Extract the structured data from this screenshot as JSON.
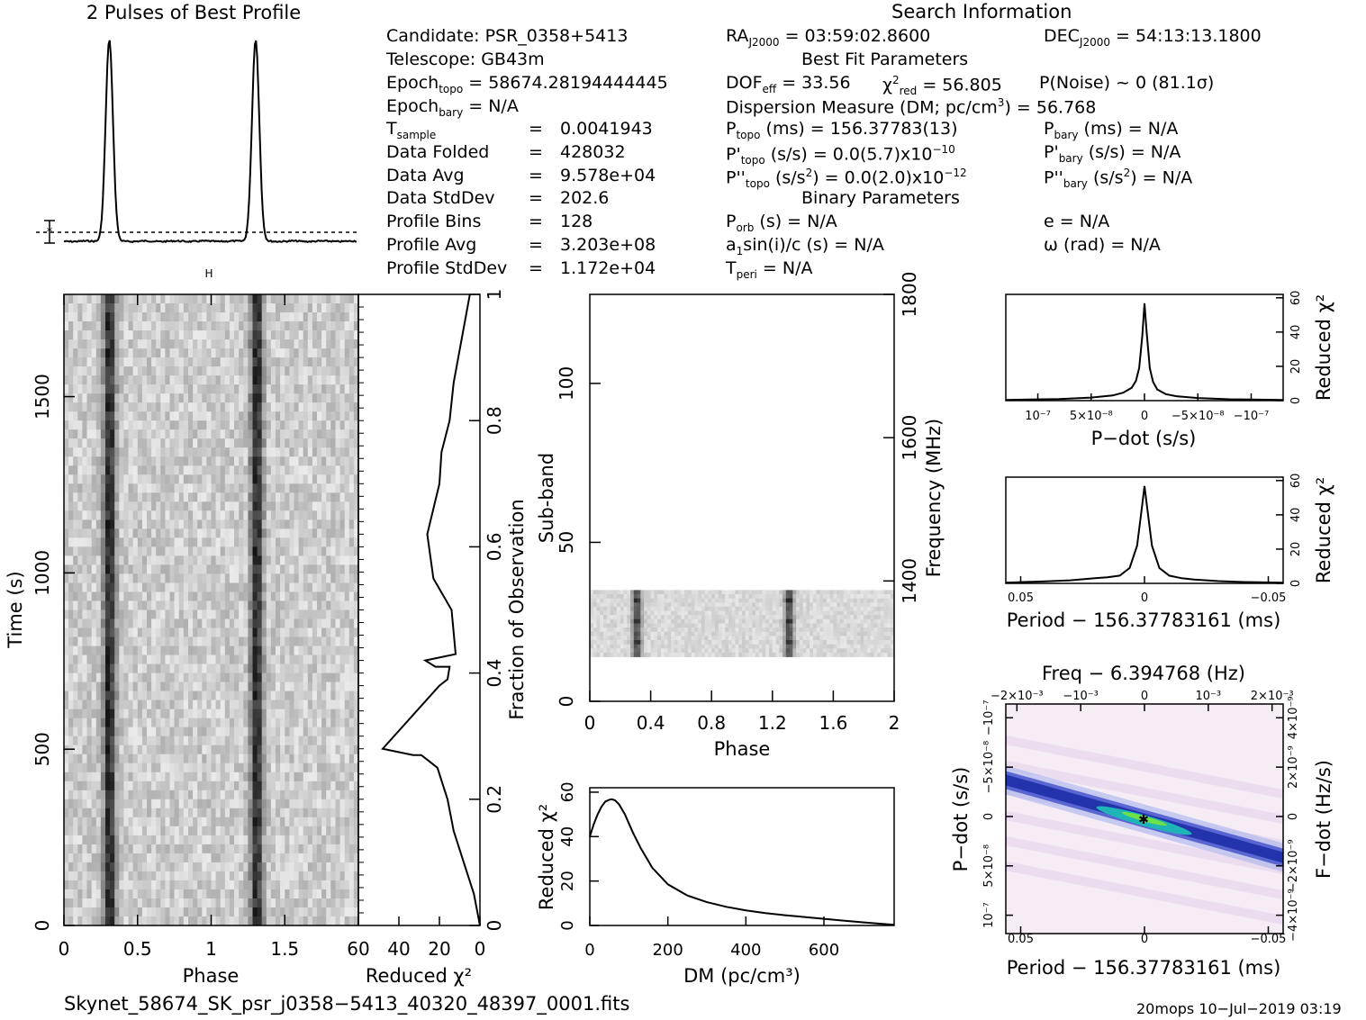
{
  "header": {
    "profile_title": "2 Pulses of Best Profile",
    "search_title": "Search Information"
  },
  "candidate": {
    "candidate": "Candidate:  PSR_0358+5413",
    "telescope": "Telescope:  GB43m",
    "epoch_topo_label": "Epoch",
    "epoch_topo_sub": "topo",
    "epoch_topo_value": " = 58674.28194444445",
    "epoch_bary_label": "Epoch",
    "epoch_bary_sub": "bary",
    "epoch_bary_value": " = N/A",
    "tsample_label": "T",
    "tsample_sub": "sample",
    "tsample_value": "0.0041943",
    "data_folded_label": "Data Folded",
    "data_folded_value": "428032",
    "data_avg_label": "Data Avg",
    "data_avg_value": "9.578e+04",
    "data_stddev_label": "Data StdDev",
    "data_stddev_value": "202.6",
    "profile_bins_label": "Profile Bins",
    "profile_bins_value": "128",
    "profile_avg_label": "Profile Avg",
    "profile_avg_value": "3.203e+08",
    "profile_stddev_label": "Profile StdDev",
    "profile_stddev_value": "1.172e+04",
    "equals": "="
  },
  "search": {
    "ra": "= 03:59:02.8600",
    "dec": "= 54:13:13.1800",
    "ra_label": "RA",
    "dec_label": "DEC",
    "j2000": "J2000",
    "best_fit": "Best Fit Parameters",
    "dof_label": "DOF",
    "dof_sub": "eff",
    "dof_value": " = 33.56",
    "chi_red_sub": "red",
    "chi_value": " = 56.805",
    "pnoise": "P(Noise) ~ 0   (81.1σ)",
    "dm_line": "Dispersion Measure (DM; pc/cm",
    "dm_value": ") = 56.768",
    "ptopo": "(ms) =  156.37783(13)",
    "pdtopo": "(s/s) = 0.0(5.7)x10",
    "pdtopo_exp": "−10",
    "pddtopo": "(s/s",
    "pddtopo_val": ") = 0.0(2.0)x10",
    "pddtopo_exp": "−12",
    "pbary": "(ms) = N/A",
    "pdbary": "(s/s) = N/A",
    "pddbary": "(s/s",
    "pddbary_val": ") = N/A",
    "topo": "topo",
    "bary": "bary",
    "binary": "Binary Parameters",
    "porb": "(s) = N/A",
    "asini": "sin(i)/c (s) = N/A",
    "tperi": " = N/A",
    "e": "e = N/A",
    "omega": "ω (rad) = N/A"
  },
  "footer": {
    "filename": "Skynet_58674_SK_psr_j0358−5413_40320_48397_0001.fits",
    "stamp": "20mops 10−Jul−2019 03:19"
  },
  "chart_data": [
    {
      "type": "line",
      "id": "pulse-profile",
      "title": "2 Pulses of Best Profile",
      "xlim": [
        0,
        2
      ],
      "peaks_phase": [
        0.31,
        1.31
      ]
    },
    {
      "type": "heatmap",
      "id": "time-phase",
      "xlabel": "Phase",
      "ylabel": "Time (s)",
      "xlim": [
        0,
        2
      ],
      "ylim": [
        0,
        1790
      ],
      "xticks": [
        "0",
        "0.5",
        "1",
        "1.5"
      ],
      "yticks": [
        "0",
        "500",
        "1000",
        "1500"
      ],
      "pulse_phase": [
        0.31,
        1.31
      ]
    },
    {
      "type": "line",
      "id": "chi-vs-time",
      "xlabel": "Reduced χ²",
      "ylabel": "Fraction of Observation",
      "xticks": [
        "60",
        "40",
        "20",
        "0"
      ],
      "yticks": [
        "0",
        "0.2",
        "0.4",
        "0.6",
        "0.8",
        "1"
      ],
      "x": [
        0,
        3,
        8,
        13,
        16,
        18,
        21,
        25,
        29,
        33,
        48,
        20,
        16,
        15,
        22,
        27,
        12,
        14,
        23,
        26,
        20,
        19,
        15,
        13,
        9,
        5
      ],
      "y": [
        0.0,
        0.05,
        0.1,
        0.15,
        0.2,
        0.22,
        0.25,
        0.26,
        0.27,
        0.27,
        0.28,
        0.38,
        0.39,
        0.41,
        0.41,
        0.42,
        0.43,
        0.5,
        0.55,
        0.62,
        0.7,
        0.75,
        0.8,
        0.86,
        0.93,
        1.0
      ],
      "xlim": [
        60,
        0
      ],
      "ylim": [
        0,
        1
      ]
    },
    {
      "type": "heatmap",
      "id": "subband-phase",
      "xlabel": "Phase",
      "ylabel": "Sub-band",
      "y2label": "Frequency (MHz)",
      "xlim": [
        0,
        2
      ],
      "ylim": [
        0,
        128
      ],
      "xticks": [
        "0",
        "0.4",
        "0.8",
        "1.2",
        "1.6",
        "2"
      ],
      "yticks": [
        "0",
        "50",
        "100"
      ],
      "y2ticks": [
        "1400",
        "1600",
        "1800"
      ],
      "band_range": [
        14,
        35
      ],
      "pulse_phase": [
        0.31,
        1.31
      ]
    },
    {
      "type": "line",
      "id": "dm-curve",
      "xlabel": "DM (pc/cm³)",
      "ylabel": "Reduced χ²",
      "xlim": [
        0,
        780
      ],
      "ylim": [
        0,
        62
      ],
      "xticks": [
        "0",
        "200",
        "400",
        "600"
      ],
      "yticks": [
        "0",
        "20",
        "40",
        "60"
      ],
      "x": [
        0,
        10,
        20,
        30,
        40,
        50,
        57,
        65,
        75,
        90,
        110,
        130,
        160,
        200,
        250,
        300,
        350,
        400,
        450,
        500,
        550,
        600,
        650,
        700,
        750,
        780
      ],
      "y": [
        40,
        45.5,
        50,
        53.5,
        55.8,
        56.6,
        56.8,
        56.3,
        54.5,
        50,
        42,
        35,
        26,
        18.5,
        13.5,
        10.5,
        8.4,
        6.8,
        5.6,
        4.6,
        3.8,
        3.0,
        2.2,
        1.4,
        0.7,
        0.3
      ]
    },
    {
      "type": "line",
      "id": "pdot-chi",
      "xlabel": "P−dot (s/s)",
      "ylabel": "Reduced χ²",
      "xlim": [
        1.3e-07,
        -1.3e-07
      ],
      "ylim": [
        0,
        62
      ],
      "xticks": [
        "10⁻⁷",
        "5×10⁻⁸",
        "0",
        "−5×10⁻⁸",
        "−10⁻⁷"
      ],
      "yticks": [
        "0",
        "20",
        "40",
        "60"
      ],
      "x": [
        1.3e-07,
        8e-08,
        5e-08,
        3e-08,
        2e-08,
        1.2e-08,
        8e-09,
        5e-09,
        2e-09,
        0,
        -2e-09,
        -5e-09,
        -8e-09,
        -1.2e-08,
        -2e-08,
        -3e-08,
        -5e-08,
        -8e-08,
        -1.3e-07
      ],
      "y": [
        0.4,
        0.9,
        1.8,
        3.0,
        4.6,
        7.5,
        11.5,
        19,
        38,
        56.8,
        40,
        19,
        11,
        6.5,
        3.8,
        2.6,
        1.5,
        0.8,
        0.4
      ]
    },
    {
      "type": "line",
      "id": "period-chi",
      "xlabel": "Period − 156.37783161 (ms)",
      "ylabel": "Reduced χ²",
      "xlim": [
        0.056,
        -0.056
      ],
      "ylim": [
        0,
        62
      ],
      "xticks": [
        "0.05",
        "0",
        "−0.05"
      ],
      "yticks": [
        "0",
        "20",
        "40",
        "60"
      ],
      "x": [
        0.056,
        0.04,
        0.03,
        0.02,
        0.015,
        0.01,
        0.006,
        0.003,
        0.001,
        0,
        -0.001,
        -0.003,
        -0.006,
        -0.01,
        -0.015,
        -0.02,
        -0.03,
        -0.04,
        -0.056
      ],
      "y": [
        0.4,
        1.2,
        1.8,
        3.0,
        3.5,
        4.5,
        9,
        22,
        45,
        56.8,
        45,
        22,
        9,
        4.5,
        3.0,
        2.2,
        1.3,
        0.8,
        0.4
      ]
    },
    {
      "type": "heatmap",
      "id": "p-pdot",
      "title": "Freq − 6.394768 (Hz)",
      "xlabel": "Period − 156.37783161 (ms)",
      "ylabel": "P−dot (s/s)",
      "y2label": "F−dot (Hz/s)",
      "xlim": [
        0.056,
        -0.056
      ],
      "xticks": [
        "0.05",
        "0",
        "−0.05"
      ],
      "x2ticks": [
        "−2×10⁻³",
        "−10⁻³",
        "0",
        "10⁻³",
        "2×10⁻³"
      ],
      "yticks": [
        "10⁻⁷",
        "5×10⁻⁸",
        "0",
        "−5×10⁻⁸",
        "−10⁻⁷"
      ],
      "y2ticks": [
        "−4×10⁻⁹",
        "−2×10⁻⁹",
        "0",
        "2×10⁻⁹",
        "4×10⁻⁹"
      ]
    }
  ]
}
